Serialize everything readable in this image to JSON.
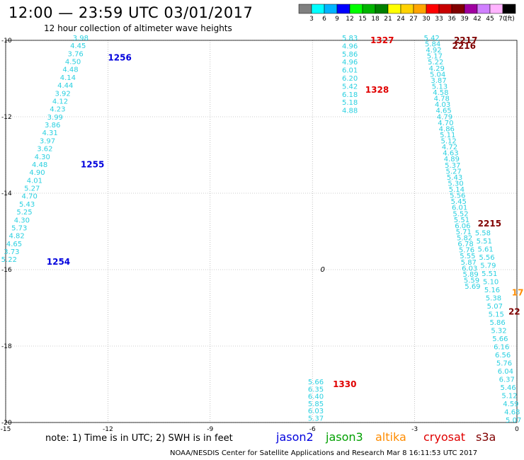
{
  "header": {
    "title": "12:00 — 23:59 UTC 03/01/2017",
    "subtitle": "12 hour collection of altimeter wave heights"
  },
  "colorbar": {
    "labels": [
      "3",
      "6",
      "9",
      "12",
      "15",
      "18",
      "21",
      "24",
      "27",
      "30",
      "33",
      "36",
      "39",
      "42",
      "45",
      "70"
    ],
    "unit": "(ft)",
    "colors": [
      "#808080",
      "#00ffff",
      "#00b4ff",
      "#0000ff",
      "#00ff00",
      "#00b400",
      "#008000",
      "#ffff00",
      "#ffd200",
      "#ffa500",
      "#ff0000",
      "#c80000",
      "#800000",
      "#a000a0",
      "#d080ff",
      "#ffb4ff",
      "#000000"
    ]
  },
  "footer": {
    "note": "note: 1) Time is in UTC; 2) SWH is in feet",
    "credit": "NOAA/NESDIS Center for Satellite Applications and Research   Mar  8 16:11:53 UTC 2017"
  },
  "legend": [
    {
      "name": "jason2",
      "color": "#0000dd"
    },
    {
      "name": "jason3",
      "color": "#00a000"
    },
    {
      "name": "altika",
      "color": "#ff8c00"
    },
    {
      "name": "cryosat",
      "color": "#e00000"
    },
    {
      "name": "s3a",
      "color": "#800000"
    }
  ],
  "chart_data": {
    "type": "scatter",
    "title": "12:00 — 23:59 UTC 03/01/2017",
    "subtitle": "12 hour collection of altimeter wave heights",
    "xlabel": "",
    "ylabel": "",
    "xlim": [
      -15,
      0
    ],
    "ylim": [
      -20,
      -10
    ],
    "x_ticks": [
      -15,
      -12,
      -9,
      -6,
      -3,
      0
    ],
    "y_ticks": [
      -10,
      -12,
      -14,
      -16,
      -18,
      -20
    ],
    "x_tick_labels": [
      "-15",
      "-12",
      "-9",
      "-6",
      "-3",
      "0"
    ],
    "y_tick_labels": [
      "-10",
      "-12",
      "-14",
      "-16",
      "-18",
      "-20"
    ],
    "grid": true,
    "marker_label": {
      "text": "0",
      "x": -5.7,
      "y": -16.0
    },
    "tracks": [
      {
        "satellite": "jason2",
        "start": [
          -12.8,
          -10.0
        ],
        "end": [
          -14.9,
          -15.8
        ],
        "values": [
          "3.98",
          "4.45",
          "3.76",
          "4.50",
          "4.48",
          "4.14",
          "4.44",
          "3.92",
          "4.12",
          "4.23",
          "3.99",
          "3.86",
          "4.31",
          "3.97",
          "3.62",
          "4.30",
          "4.48",
          "4.90",
          "4.01",
          "5.27",
          "4.70",
          "5.43",
          "5.25",
          "4.30",
          "5.73",
          "4.82",
          "4.65",
          "3.73",
          "5.22"
        ],
        "labels": [
          {
            "text": "1256",
            "x": -12.0,
            "y": -10.45
          },
          {
            "text": "1255",
            "x": -12.8,
            "y": -13.25
          },
          {
            "text": "1254",
            "x": -13.8,
            "y": -15.8
          }
        ]
      },
      {
        "satellite": "cryosat",
        "start": [
          -4.9,
          -10.0
        ],
        "end": [
          -4.9,
          -11.9
        ],
        "values": [
          "5.83",
          "4.96",
          "5.86",
          "4.96",
          "6.01",
          "6.20",
          "5.42",
          "6.18",
          "5.18",
          "4.88"
        ],
        "labels": [
          {
            "text": "1327",
            "x": -4.3,
            "y": -10.0
          },
          {
            "text": "1328",
            "x": -4.45,
            "y": -11.3
          }
        ]
      },
      {
        "satellite": "cryosat",
        "start": [
          -5.9,
          -19.0
        ],
        "end": [
          -5.9,
          -19.95
        ],
        "values": [
          "5.66",
          "6.35",
          "6.40",
          "5.85",
          "6.03",
          "5.37"
        ],
        "labels": [
          {
            "text": "1330",
            "x": -5.4,
            "y": -19.0
          }
        ]
      },
      {
        "satellite": "s3a",
        "start": [
          -2.5,
          -10.0
        ],
        "end": [
          -1.3,
          -16.5
        ],
        "values": [
          "5.42",
          "5.84",
          "4.92",
          "5.17",
          "5.22",
          "4.29",
          "5.04",
          "3.87",
          "5.13",
          "4.58",
          "4.78",
          "4.03",
          "4.65",
          "4.79",
          "4.70",
          "4.86",
          "5.11",
          "5.12",
          "4.72",
          "4.63",
          "4.89",
          "5.37",
          "5.27",
          "5.43",
          "5.30",
          "5.14",
          "5.56",
          "5.45",
          "6.01",
          "5.52",
          "5.51",
          "6.06",
          "5.71",
          "5.82",
          "6.78",
          "5.76",
          "5.55",
          "5.87",
          "6.03",
          "5.89",
          "5.59",
          "5.69"
        ],
        "labels": [
          {
            "text": "2217",
            "x": -1.85,
            "y": -10.0
          },
          {
            "text": "2216",
            "x": -1.9,
            "y": -10.15
          },
          {
            "text": "2215",
            "x": -1.15,
            "y": -14.8
          }
        ]
      },
      {
        "satellite": "s3a",
        "start": [
          -1.0,
          -15.1
        ],
        "end": [
          -0.1,
          -20.0
        ],
        "values": [
          "5.58",
          "5.51",
          "5.61",
          "5.56",
          "5.79",
          "5.51",
          "5.10",
          "5.16",
          "5.38",
          "5.07",
          "5.15",
          "5.86",
          "5.32",
          "5.66",
          "6.16",
          "6.56",
          "5.76",
          "6.04",
          "6.37",
          "5.46",
          "5.12",
          "4.59",
          "4.68",
          "5.07"
        ],
        "labels": [
          {
            "text": "22",
            "x": -0.25,
            "y": -17.1
          }
        ]
      },
      {
        "satellite": "altika",
        "start": [
          0.0,
          -16.8
        ],
        "end": [
          0.0,
          -16.8
        ],
        "values": [],
        "labels": [
          {
            "text": "17",
            "x": -0.15,
            "y": -16.6
          }
        ]
      }
    ]
  }
}
